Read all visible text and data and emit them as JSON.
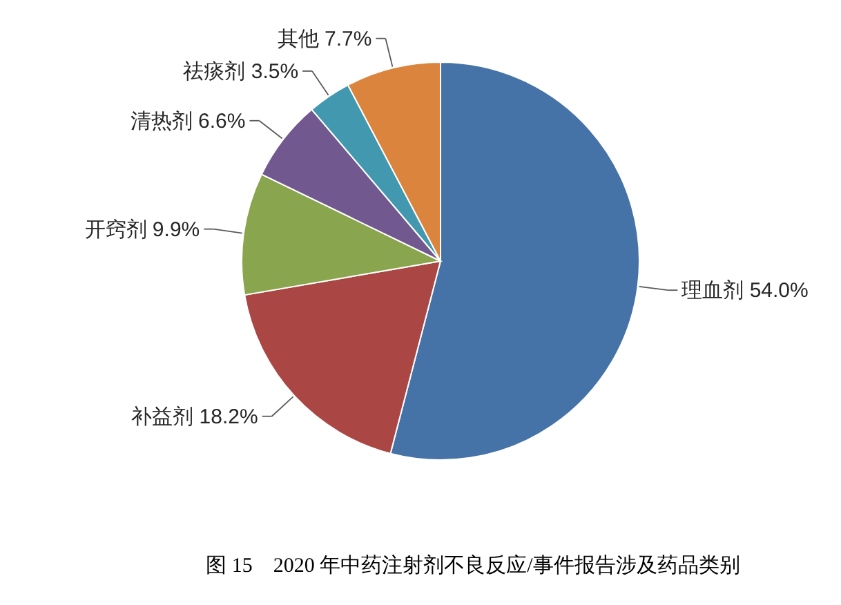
{
  "chart_data": {
    "type": "pie",
    "title": "图 15　2020 年中药注射剂不良反应/事件报告涉及药品类别",
    "categories": [
      "理血剂",
      "补益剂",
      "开窍剂",
      "清热剂",
      "祛痰剂",
      "其他"
    ],
    "values": [
      54.0,
      18.2,
      9.9,
      6.6,
      3.5,
      7.7
    ],
    "value_labels": [
      "54.0%",
      "18.2%",
      "9.9%",
      "6.6%",
      "3.5%",
      "7.7%"
    ],
    "colors": [
      "#4572a7",
      "#aa4643",
      "#89a54e",
      "#71588f",
      "#4198af",
      "#db843d"
    ]
  }
}
